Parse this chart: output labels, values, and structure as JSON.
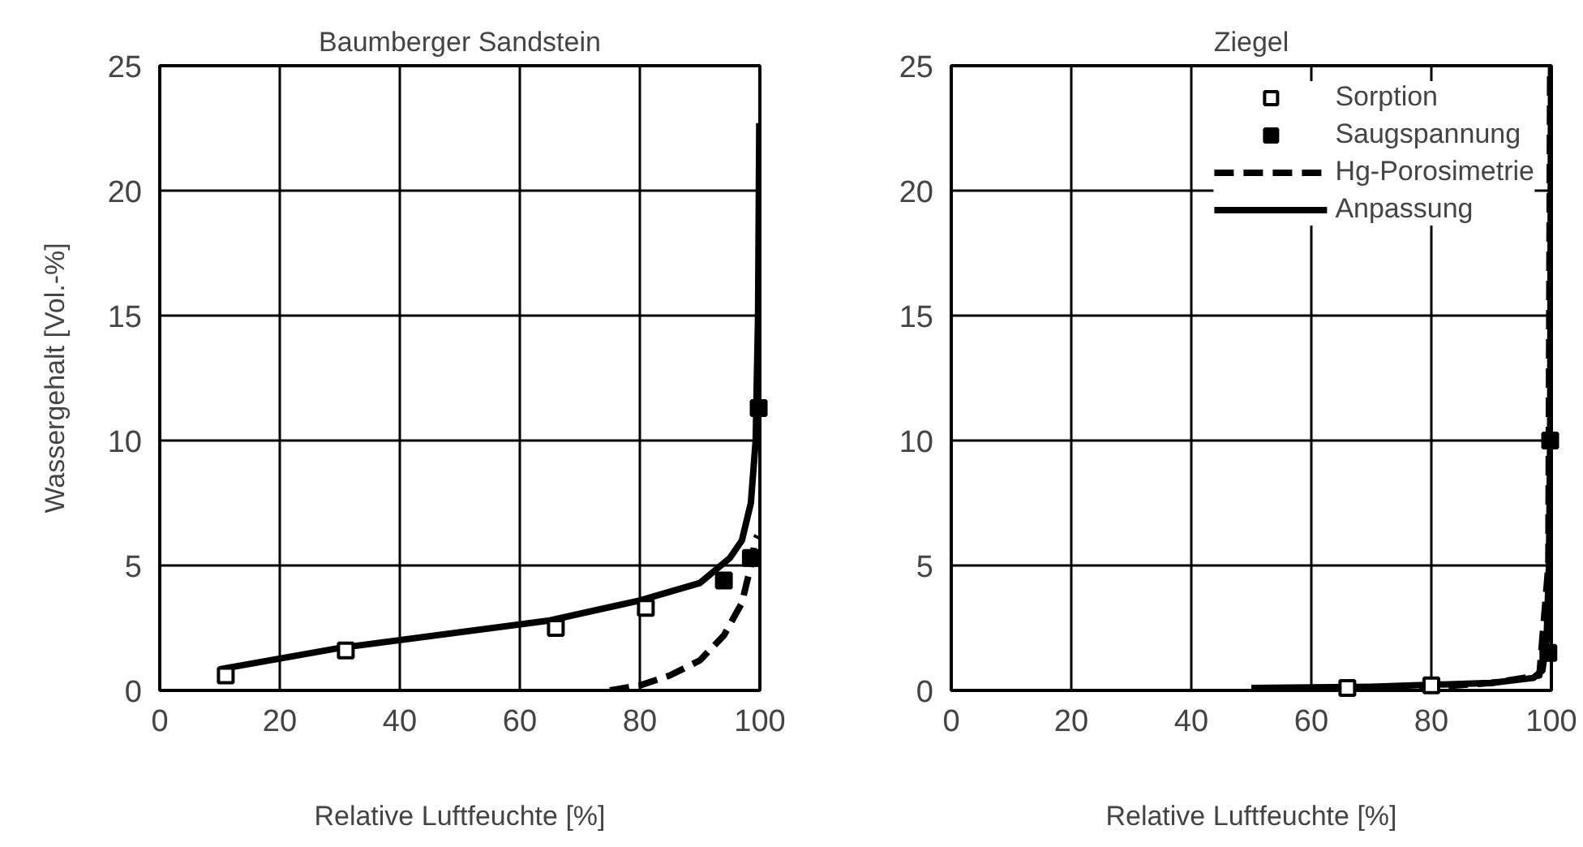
{
  "chart_data": [
    {
      "type": "line",
      "title": "Baumberger Sandstein",
      "xlabel": "Relative Luftfeuchte [%]",
      "ylabel": "Wassergehalt [Vol.-%]",
      "xlim": [
        0,
        100
      ],
      "ylim": [
        0,
        25
      ],
      "xticks": [
        0,
        20,
        40,
        60,
        80,
        100
      ],
      "yticks": [
        0,
        5,
        10,
        15,
        20,
        25
      ],
      "grid": true,
      "legend": false,
      "series": [
        {
          "type": "scatter",
          "marker": "square",
          "color": "#ffffff",
          "x": [
            11,
            31,
            66,
            81
          ],
          "values": [
            0.6,
            1.6,
            2.5,
            3.3
          ]
        },
        {
          "type": "scatter",
          "marker": "square",
          "color": "#000000",
          "x": [
            94,
            98.5,
            99.8
          ],
          "values": [
            4.4,
            5.3,
            11.3
          ]
        },
        {
          "line_style": "dashed",
          "marker": "none",
          "color": "#000000",
          "x": [
            75,
            80,
            85,
            90,
            94,
            97,
            98.5,
            99.2,
            99.6
          ],
          "values": [
            0,
            0.2,
            0.6,
            1.2,
            2.2,
            3.5,
            5,
            6,
            6.2
          ]
        },
        {
          "line_style": "solid",
          "marker": "none",
          "color": "#000000",
          "x": [
            10,
            30,
            65,
            80,
            90,
            95,
            97,
            98.5,
            99.3,
            99.7,
            99.9
          ],
          "values": [
            0.85,
            1.7,
            2.8,
            3.6,
            4.3,
            5.3,
            6,
            7.5,
            10,
            15,
            22.7
          ]
        }
      ]
    },
    {
      "type": "line",
      "title": "Ziegel",
      "xlabel": "Relative Luftfeuchte [%]",
      "xlim": [
        0,
        100
      ],
      "ylim": [
        0,
        25
      ],
      "xticks": [
        0,
        20,
        40,
        60,
        80,
        100
      ],
      "yticks": [
        0,
        5,
        10,
        15,
        20,
        25
      ],
      "grid": true,
      "legend": "top right",
      "series": [
        {
          "name": "Sorption",
          "type": "scatter",
          "marker": "square",
          "color": "#ffffff",
          "x": [
            66,
            80
          ],
          "values": [
            0.1,
            0.2
          ]
        },
        {
          "name": "Saugspannung",
          "type": "scatter",
          "marker": "square",
          "color": "#000000",
          "x": [
            99.5,
            99.8
          ],
          "values": [
            1.5,
            10
          ]
        },
        {
          "name": "Hg-Porosimetrie",
          "line_style": "dashed",
          "marker": "none",
          "color": "#000000",
          "x": [
            78,
            90,
            98,
            99.5,
            99.8
          ],
          "values": [
            0.1,
            0.3,
            0.6,
            5,
            25
          ]
        },
        {
          "name": "Anpassung",
          "line_style": "solid",
          "marker": "none",
          "color": "#000000",
          "x": [
            50,
            70,
            90,
            97,
            98.5,
            99.2,
            99.6,
            99.8,
            99.9,
            99.95
          ],
          "values": [
            0.1,
            0.15,
            0.3,
            0.5,
            0.8,
            2,
            5,
            10,
            20,
            25
          ]
        }
      ]
    }
  ]
}
